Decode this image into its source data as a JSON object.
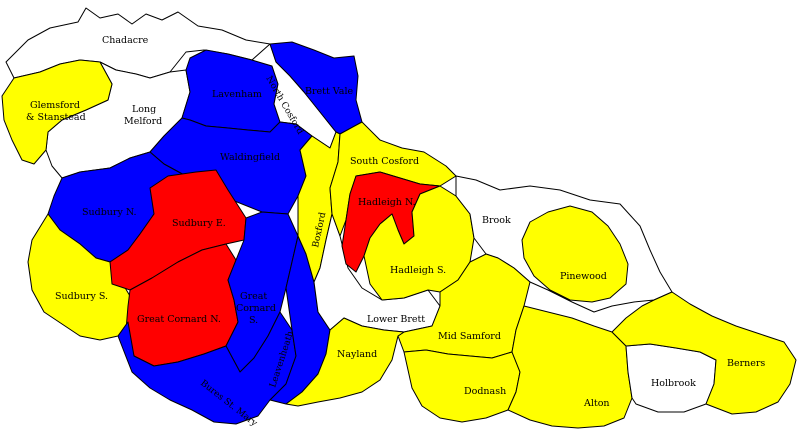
{
  "colors": {
    "yellow": "#ffff00",
    "blue": "#0000ff",
    "red": "#ff0000",
    "white": "#ffffff",
    "outline": "#000000"
  },
  "wards": {
    "chadacre": {
      "label": "Chadacre",
      "color": "white"
    },
    "glemsford": {
      "line1": "Glemsford",
      "line2": "& Stanstead",
      "color": "yellow"
    },
    "long_melford": {
      "line1": "Long",
      "line2": "Melford",
      "color": "white"
    },
    "lavenham": {
      "label": "Lavenham",
      "color": "blue"
    },
    "north_cosford": {
      "label": "North Cosford",
      "color": "white"
    },
    "brett_vale": {
      "label": "Brett Vale",
      "color": "blue"
    },
    "waldingfield": {
      "label": "Waldingfield",
      "color": "blue"
    },
    "sudbury_n": {
      "label": "Sudbury N.",
      "color": "blue"
    },
    "sudbury_e": {
      "label": "Sudbury E.",
      "color": "red"
    },
    "sudbury_s": {
      "label": "Sudbury S.",
      "color": "yellow"
    },
    "great_cornard_n": {
      "label": "Great Cornard N.",
      "color": "red"
    },
    "great_cornard_s": {
      "line1": "Great",
      "line2": "Cornard",
      "line3": "S.",
      "color": "blue"
    },
    "bures_st_mary": {
      "label": "Bures St. Mary",
      "color": "blue"
    },
    "leavenheath": {
      "label": "Leavenheath",
      "color": "blue"
    },
    "boxford": {
      "label": "Boxford",
      "color": "yellow"
    },
    "nayland": {
      "label": "Nayland",
      "color": "yellow"
    },
    "south_cosford": {
      "label": "South Cosford",
      "color": "yellow"
    },
    "hadleigh_n": {
      "label": "Hadleigh N.",
      "color": "red"
    },
    "hadleigh_s": {
      "label": "Hadleigh S.",
      "color": "yellow"
    },
    "lower_brett": {
      "label": "Lower Brett",
      "color": "white"
    },
    "brook": {
      "label": "Brook",
      "color": "white"
    },
    "pinewood": {
      "label": "Pinewood",
      "color": "yellow"
    },
    "mid_samford": {
      "label": "Mid Samford",
      "color": "yellow"
    },
    "dodnash": {
      "label": "Dodnash",
      "color": "yellow"
    },
    "alton": {
      "label": "Alton",
      "color": "yellow"
    },
    "holbrook": {
      "label": "Holbrook",
      "color": "white"
    },
    "berners": {
      "label": "Berners",
      "color": "yellow"
    }
  }
}
